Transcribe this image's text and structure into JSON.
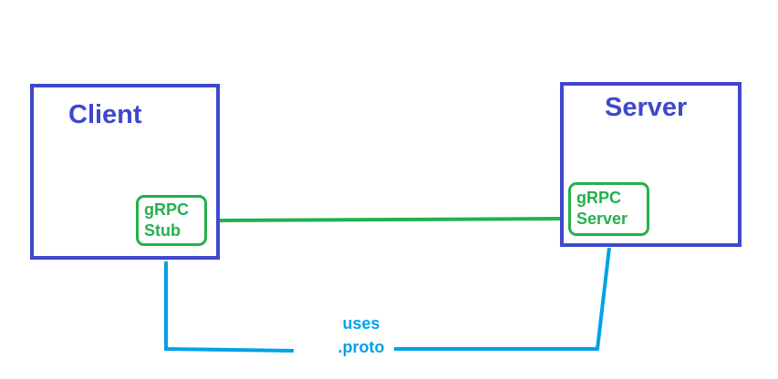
{
  "client": {
    "title": "Client",
    "component_line1": "gRPC",
    "component_line2": "Stub"
  },
  "server": {
    "title": "Server",
    "component_line1": "gRPC",
    "component_line2": "Server"
  },
  "proto": {
    "line1": "uses",
    "line2": ".proto"
  },
  "colors": {
    "box_border": "#3f48cc",
    "grpc_green": "#22b14c",
    "proto_blue": "#00a2e8"
  }
}
